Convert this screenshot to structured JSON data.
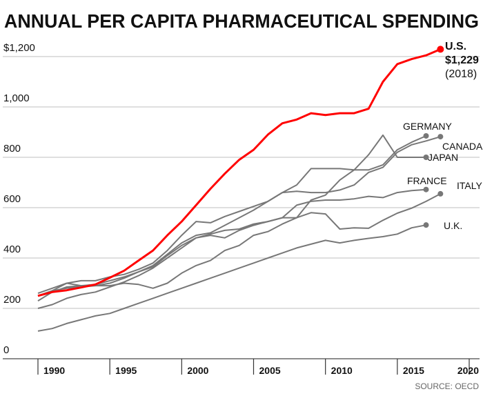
{
  "chart_data": {
    "type": "line",
    "title": "ANNUAL PER CAPITA PHARMACEUTICAL SPENDING",
    "source": "SOURCE: OECD",
    "xlabel": "",
    "ylabel": "",
    "xlim": [
      1990,
      2020
    ],
    "ylim": [
      0,
      1200
    ],
    "x_ticks": [
      1990,
      1995,
      2000,
      2005,
      2010,
      2015,
      2020
    ],
    "x_tick_labels": [
      "1990",
      "1995",
      "2000",
      "2005",
      "2010",
      "2015",
      "2020"
    ],
    "y_ticks": [
      0,
      200,
      400,
      600,
      800,
      1000,
      1200
    ],
    "y_tick_labels": [
      "0",
      "200",
      "400",
      "600",
      "800",
      "1,000",
      "$1,200"
    ],
    "grid": "horizontal",
    "colors": {
      "highlight": "#ff0000",
      "others": "#777777",
      "grid": "#cccccc"
    },
    "highlight_label": {
      "name": "U.S.",
      "value": "$1,229",
      "year": "(2018)"
    },
    "series": [
      {
        "name": "U.S.",
        "highlight": true,
        "x": [
          1990,
          1991,
          1992,
          1993,
          1994,
          1995,
          1996,
          1997,
          1998,
          1999,
          2000,
          2001,
          2002,
          2003,
          2004,
          2005,
          2006,
          2007,
          2008,
          2009,
          2010,
          2011,
          2012,
          2013,
          2014,
          2015,
          2016,
          2017,
          2018
        ],
        "values": [
          250,
          265,
          272,
          283,
          295,
          322,
          350,
          390,
          430,
          490,
          545,
          610,
          675,
          735,
          790,
          830,
          890,
          935,
          950,
          975,
          968,
          975,
          975,
          993,
          1100,
          1170,
          1190,
          1205,
          1229
        ]
      },
      {
        "name": "GERMANY",
        "x": [
          1990,
          1991,
          1992,
          1993,
          1994,
          1995,
          1996,
          1997,
          1998,
          1999,
          2000,
          2001,
          2002,
          2003,
          2004,
          2005,
          2006,
          2007,
          2008,
          2009,
          2010,
          2011,
          2012,
          2013,
          2014,
          2015,
          2016,
          2017
        ],
        "values": [
          260,
          280,
          300,
          310,
          310,
          325,
          335,
          355,
          380,
          430,
          490,
          545,
          540,
          565,
          585,
          605,
          625,
          660,
          690,
          755,
          755,
          755,
          750,
          750,
          770,
          830,
          860,
          885
        ]
      },
      {
        "name": "CANADA",
        "x": [
          1990,
          1991,
          1992,
          1993,
          1994,
          1995,
          1996,
          1997,
          1998,
          1999,
          2000,
          2001,
          2002,
          2003,
          2004,
          2005,
          2006,
          2007,
          2008,
          2009,
          2010,
          2011,
          2012,
          2013,
          2014,
          2015,
          2016,
          2017,
          2018
        ],
        "values": [
          230,
          265,
          285,
          290,
          295,
          310,
          325,
          345,
          370,
          415,
          460,
          490,
          500,
          530,
          560,
          590,
          625,
          660,
          665,
          660,
          660,
          670,
          690,
          740,
          760,
          820,
          850,
          865,
          882
        ]
      },
      {
        "name": "JAPAN",
        "x": [
          1990,
          1991,
          1992,
          1993,
          1994,
          1995,
          1996,
          1997,
          1998,
          1999,
          2000,
          2001,
          2002,
          2003,
          2004,
          2005,
          2006,
          2007,
          2008,
          2009,
          2010,
          2011,
          2012,
          2013,
          2014,
          2015,
          2016,
          2017
        ],
        "values": [
          250,
          270,
          300,
          290,
          290,
          290,
          300,
          295,
          280,
          300,
          340,
          370,
          390,
          430,
          450,
          490,
          505,
          535,
          560,
          630,
          650,
          710,
          750,
          810,
          888,
          800,
          800,
          800
        ]
      },
      {
        "name": "FRANCE",
        "x": [
          1990,
          1991,
          1992,
          1993,
          1994,
          1995,
          1996,
          1997,
          1998,
          1999,
          2000,
          2001,
          2002,
          2003,
          2004,
          2005,
          2006,
          2007,
          2008,
          2009,
          2010,
          2011,
          2012,
          2013,
          2014,
          2015,
          2016,
          2017
        ],
        "values": [
          250,
          270,
          280,
          285,
          290,
          300,
          320,
          345,
          365,
          410,
          450,
          480,
          495,
          510,
          515,
          535,
          545,
          560,
          610,
          625,
          630,
          630,
          635,
          645,
          640,
          660,
          668,
          672
        ]
      },
      {
        "name": "ITALY",
        "x": [
          1990,
          1991,
          1992,
          1993,
          1994,
          1995,
          1996,
          1997,
          1998,
          1999,
          2000,
          2001,
          2002,
          2003,
          2004,
          2005,
          2006,
          2007,
          2008,
          2009,
          2010,
          2011,
          2012,
          2013,
          2014,
          2015,
          2016,
          2017,
          2018
        ],
        "values": [
          200,
          215,
          240,
          255,
          265,
          285,
          305,
          330,
          360,
          400,
          440,
          480,
          490,
          480,
          510,
          530,
          545,
          560,
          560,
          580,
          575,
          515,
          520,
          518,
          550,
          578,
          598,
          625,
          655
        ]
      },
      {
        "name": "U.K.",
        "x": [
          1990,
          1991,
          1992,
          1993,
          1994,
          1995,
          1996,
          1997,
          1998,
          1999,
          2000,
          2001,
          2002,
          2003,
          2004,
          2005,
          2006,
          2007,
          2008,
          2009,
          2010,
          2011,
          2012,
          2013,
          2014,
          2015,
          2016,
          2017
        ],
        "values": [
          110,
          120,
          140,
          155,
          170,
          180,
          200,
          220,
          240,
          260,
          280,
          300,
          320,
          340,
          360,
          380,
          400,
          420,
          440,
          455,
          470,
          460,
          470,
          478,
          485,
          495,
          520,
          531
        ]
      }
    ]
  }
}
